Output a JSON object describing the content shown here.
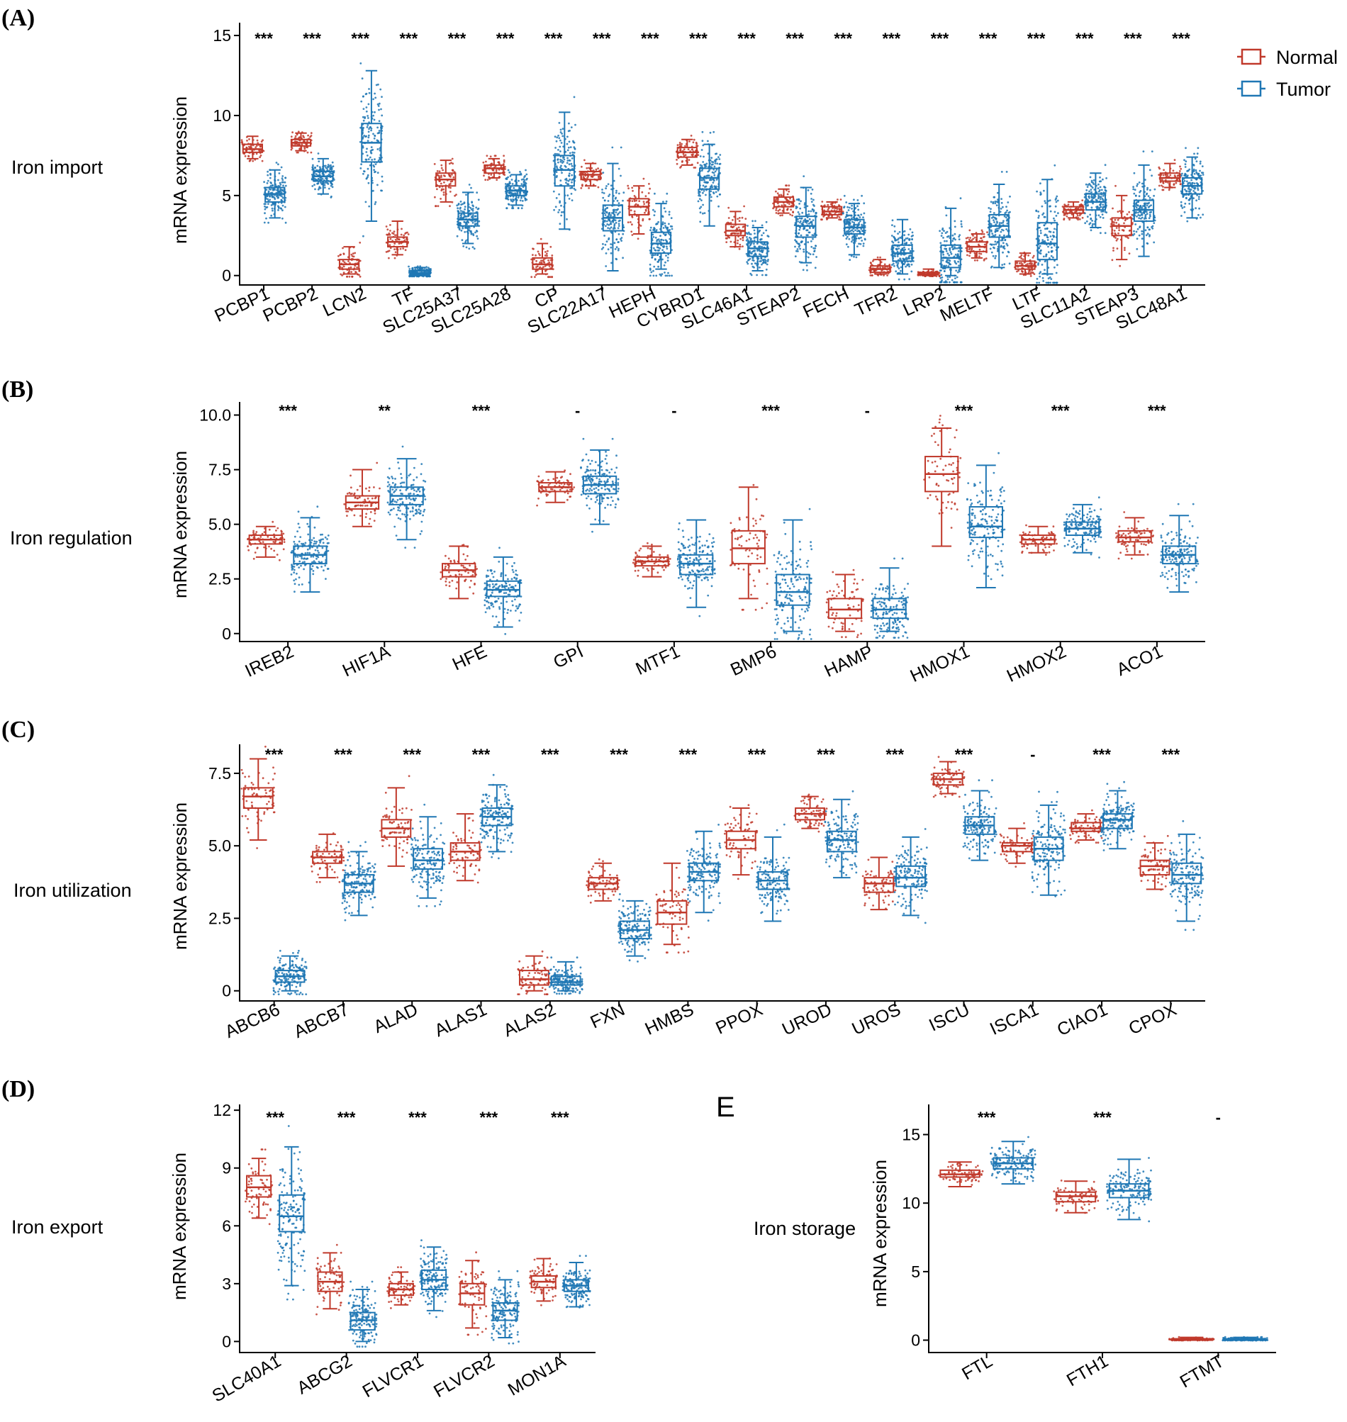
{
  "colors": {
    "normal": "#c0392b",
    "tumor": "#1f77b4",
    "axis": "#000000"
  },
  "legend": {
    "normal_label": "Normal",
    "tumor_label": "Tumor",
    "position": "top-right"
  },
  "panels": [
    {
      "key": "A",
      "letter": "(A)",
      "row_label": "Iron import",
      "ylabel": "mRNA expression"
    },
    {
      "key": "B",
      "letter": "(B)",
      "row_label": "Iron regulation",
      "ylabel": "mRNA expression"
    },
    {
      "key": "C",
      "letter": "(C)",
      "row_label": "Iron utilization",
      "ylabel": "mRNA expression"
    },
    {
      "key": "D",
      "letter": "(D)",
      "row_label": "Iron export",
      "ylabel": "mRNA expression"
    },
    {
      "key": "E",
      "letter": "E",
      "row_label": "Iron storage",
      "ylabel": "mRNA expression"
    }
  ],
  "chart_data": [
    {
      "panel": "A",
      "type": "box",
      "title": "Iron import",
      "xlabel": "",
      "ylabel": "mRNA expression",
      "ylim": [
        -0.5,
        15.8
      ],
      "yticks": [
        0,
        5,
        10,
        15
      ],
      "ytick_labels": [
        "0",
        "5",
        "10",
        "15"
      ],
      "categories": [
        "PCBP1",
        "PCBP2",
        "LCN2",
        "TF",
        "SLC25A37",
        "SLC25A28",
        "CP",
        "SLC22A17",
        "HEPH",
        "CYBRD1",
        "SLC46A1",
        "STEAP2",
        "FECH",
        "TFR2",
        "LRP2",
        "MELTF",
        "LTF",
        "SLC11A2",
        "STEAP3",
        "SLC48A1"
      ],
      "significance": [
        "***",
        "***",
        "***",
        "***",
        "***",
        "***",
        "***",
        "***",
        "***",
        "***",
        "***",
        "***",
        "***",
        "***",
        "***",
        "***",
        "***",
        "***",
        "***",
        "***"
      ],
      "series": [
        {
          "name": "Normal",
          "boxes": [
            [
              7.3,
              7.7,
              7.9,
              8.2,
              8.7
            ],
            [
              7.8,
              8.1,
              8.3,
              8.5,
              8.9
            ],
            [
              0.1,
              0.4,
              0.7,
              1.0,
              1.8
            ],
            [
              1.3,
              1.8,
              2.1,
              2.4,
              3.4
            ],
            [
              4.6,
              5.6,
              6.0,
              6.4,
              7.2
            ],
            [
              6.1,
              6.4,
              6.7,
              6.9,
              7.3
            ],
            [
              0.1,
              0.4,
              0.7,
              1.1,
              2.0
            ],
            [
              5.6,
              6.0,
              6.3,
              6.5,
              7.0
            ],
            [
              2.6,
              3.8,
              4.3,
              4.8,
              5.6
            ],
            [
              6.9,
              7.4,
              7.7,
              8.0,
              8.5
            ],
            [
              1.8,
              2.5,
              2.8,
              3.2,
              4.0
            ],
            [
              3.9,
              4.3,
              4.6,
              4.9,
              5.4
            ],
            [
              3.6,
              3.8,
              4.0,
              4.3,
              4.6
            ],
            [
              0.1,
              0.2,
              0.4,
              0.6,
              1.0
            ],
            [
              0.0,
              0.05,
              0.1,
              0.2,
              0.4
            ],
            [
              1.1,
              1.5,
              1.8,
              2.1,
              2.6
            ],
            [
              0.1,
              0.4,
              0.6,
              0.9,
              1.4
            ],
            [
              3.6,
              3.9,
              4.1,
              4.3,
              4.6
            ],
            [
              1.0,
              2.5,
              3.1,
              3.6,
              5.0
            ],
            [
              5.5,
              5.9,
              6.1,
              6.4,
              7.0
            ]
          ]
        },
        {
          "name": "Tumor",
          "boxes": [
            [
              3.6,
              4.6,
              5.1,
              5.5,
              6.6
            ],
            [
              5.1,
              5.9,
              6.2,
              6.5,
              7.3
            ],
            [
              3.4,
              7.1,
              8.3,
              9.5,
              12.8
            ],
            [
              0.0,
              0.05,
              0.15,
              0.3,
              0.5
            ],
            [
              2.0,
              3.1,
              3.5,
              3.9,
              5.2
            ],
            [
              4.4,
              5.0,
              5.3,
              5.6,
              6.3
            ],
            [
              2.9,
              5.6,
              6.6,
              7.5,
              10.2
            ],
            [
              0.3,
              2.8,
              3.6,
              4.4,
              7.0
            ],
            [
              0.4,
              1.4,
              2.0,
              2.7,
              4.5
            ],
            [
              3.1,
              5.4,
              6.1,
              6.7,
              8.2
            ],
            [
              0.3,
              1.2,
              1.7,
              2.1,
              3.0
            ],
            [
              0.8,
              2.4,
              3.1,
              3.7,
              5.5
            ],
            [
              1.3,
              2.6,
              3.0,
              3.5,
              4.5
            ],
            [
              0.1,
              0.9,
              1.4,
              1.9,
              3.5
            ],
            [
              0.0,
              0.5,
              1.1,
              1.9,
              4.2
            ],
            [
              0.5,
              2.4,
              3.1,
              3.8,
              5.7
            ],
            [
              0.1,
              1.0,
              2.0,
              3.3,
              6.0
            ],
            [
              3.0,
              4.1,
              4.6,
              5.1,
              6.4
            ],
            [
              1.2,
              3.4,
              4.1,
              4.7,
              6.9
            ],
            [
              3.6,
              5.1,
              5.6,
              6.1,
              7.4
            ]
          ]
        }
      ]
    },
    {
      "panel": "B",
      "type": "box",
      "title": "Iron regulation",
      "xlabel": "",
      "ylabel": "mRNA expression",
      "ylim": [
        -0.3,
        10.6
      ],
      "yticks": [
        0,
        2.5,
        5,
        7.5,
        10
      ],
      "ytick_labels": [
        "0",
        "2.5",
        "5.0",
        "7.5",
        "10.0"
      ],
      "categories": [
        "IREB2",
        "HIF1A",
        "HFE",
        "GPI",
        "MTF1",
        "BMP6",
        "HAMP",
        "HMOX1",
        "HMOX2",
        "ACO1"
      ],
      "significance": [
        "***",
        "**",
        "***",
        "-",
        "-",
        "***",
        "-",
        "***",
        "***",
        "***"
      ],
      "series": [
        {
          "name": "Normal",
          "boxes": [
            [
              3.5,
              4.1,
              4.3,
              4.5,
              4.9
            ],
            [
              4.9,
              5.7,
              6.0,
              6.3,
              7.5
            ],
            [
              1.6,
              2.6,
              2.9,
              3.2,
              4.0
            ],
            [
              6.0,
              6.5,
              6.7,
              6.9,
              7.4
            ],
            [
              2.6,
              3.1,
              3.3,
              3.5,
              4.0
            ],
            [
              1.6,
              3.2,
              3.9,
              4.7,
              6.7
            ],
            [
              0.1,
              0.7,
              1.1,
              1.6,
              2.7
            ],
            [
              4.0,
              6.5,
              7.3,
              8.1,
              9.4
            ],
            [
              3.7,
              4.1,
              4.3,
              4.5,
              4.9
            ],
            [
              3.6,
              4.2,
              4.4,
              4.7,
              5.3
            ]
          ]
        },
        {
          "name": "Tumor",
          "boxes": [
            [
              1.9,
              3.2,
              3.6,
              4.0,
              5.3
            ],
            [
              4.3,
              5.9,
              6.3,
              6.7,
              8.0
            ],
            [
              0.3,
              1.7,
              2.0,
              2.4,
              3.5
            ],
            [
              5.0,
              6.4,
              6.8,
              7.2,
              8.4
            ],
            [
              1.2,
              2.7,
              3.2,
              3.6,
              5.2
            ],
            [
              0.1,
              1.3,
              1.9,
              2.7,
              5.2
            ],
            [
              0.1,
              0.7,
              1.1,
              1.6,
              3.0
            ],
            [
              2.1,
              4.4,
              4.9,
              5.8,
              7.7
            ],
            [
              3.7,
              4.5,
              4.8,
              5.1,
              5.9
            ],
            [
              1.9,
              3.2,
              3.6,
              4.0,
              5.4
            ]
          ]
        }
      ]
    },
    {
      "panel": "C",
      "type": "box",
      "title": "Iron utilization",
      "xlabel": "",
      "ylabel": "mRNA expression",
      "ylim": [
        -0.3,
        8.5
      ],
      "yticks": [
        0,
        2.5,
        5,
        7.5
      ],
      "ytick_labels": [
        "0",
        "2.5",
        "5.0",
        "7.5"
      ],
      "categories": [
        "ABCB6",
        "ABCB7",
        "ALAD",
        "ALAS1",
        "ALAS2",
        "FXN",
        "HMBS",
        "PPOX",
        "UROD",
        "UROS",
        "ISCU",
        "ISCA1",
        "CIAO1",
        "CPOX"
      ],
      "significance": [
        "***",
        "***",
        "***",
        "***",
        "***",
        "***",
        "***",
        "***",
        "***",
        "***",
        "***",
        "-",
        "***",
        "***"
      ],
      "series": [
        {
          "name": "Normal",
          "boxes": [
            [
              5.2,
              6.3,
              6.7,
              7.0,
              8.0
            ],
            [
              3.9,
              4.4,
              4.6,
              4.8,
              5.4
            ],
            [
              4.3,
              5.3,
              5.6,
              5.9,
              7.0
            ],
            [
              3.8,
              4.5,
              4.8,
              5.1,
              6.1
            ],
            [
              0.0,
              0.2,
              0.4,
              0.7,
              1.2
            ],
            [
              3.1,
              3.5,
              3.7,
              3.9,
              4.4
            ],
            [
              1.6,
              2.3,
              2.7,
              3.1,
              4.4
            ],
            [
              4.0,
              4.9,
              5.2,
              5.5,
              6.3
            ],
            [
              5.6,
              5.9,
              6.1,
              6.3,
              6.7
            ],
            [
              2.8,
              3.4,
              3.7,
              3.9,
              4.6
            ],
            [
              6.8,
              7.1,
              7.3,
              7.5,
              7.9
            ],
            [
              4.4,
              4.8,
              5.0,
              5.1,
              5.6
            ],
            [
              5.2,
              5.5,
              5.6,
              5.8,
              6.1
            ],
            [
              3.5,
              4.0,
              4.3,
              4.5,
              5.1
            ]
          ]
        },
        {
          "name": "Tumor",
          "boxes": [
            [
              0.0,
              0.3,
              0.5,
              0.7,
              1.2
            ],
            [
              2.6,
              3.4,
              3.7,
              4.0,
              4.8
            ],
            [
              3.2,
              4.2,
              4.5,
              4.9,
              6.0
            ],
            [
              4.8,
              5.7,
              6.0,
              6.3,
              7.1
            ],
            [
              0.0,
              0.2,
              0.3,
              0.5,
              1.0
            ],
            [
              1.2,
              1.8,
              2.1,
              2.4,
              3.1
            ],
            [
              2.7,
              3.8,
              4.1,
              4.4,
              5.5
            ],
            [
              2.4,
              3.5,
              3.8,
              4.1,
              5.3
            ],
            [
              3.9,
              4.8,
              5.2,
              5.5,
              6.6
            ],
            [
              2.6,
              3.6,
              3.9,
              4.3,
              5.3
            ],
            [
              4.5,
              5.4,
              5.7,
              6.0,
              6.9
            ],
            [
              3.3,
              4.5,
              4.9,
              5.3,
              6.4
            ],
            [
              4.9,
              5.6,
              5.9,
              6.1,
              6.9
            ],
            [
              2.4,
              3.7,
              4.0,
              4.4,
              5.4
            ]
          ]
        }
      ]
    },
    {
      "panel": "D",
      "type": "box",
      "title": "Iron export",
      "xlabel": "",
      "ylabel": "mRNA expression",
      "ylim": [
        -0.5,
        12.3
      ],
      "yticks": [
        0,
        3,
        6,
        9,
        12
      ],
      "ytick_labels": [
        "0",
        "3",
        "6",
        "9",
        "12"
      ],
      "categories": [
        "SLC40A1",
        "ABCG2",
        "FLVCR1",
        "FLVCR2",
        "MON1A"
      ],
      "significance": [
        "***",
        "***",
        "***",
        "***",
        "***"
      ],
      "series": [
        {
          "name": "Normal",
          "boxes": [
            [
              6.4,
              7.5,
              8.0,
              8.6,
              9.5
            ],
            [
              1.7,
              2.6,
              3.1,
              3.6,
              4.6
            ],
            [
              1.9,
              2.4,
              2.7,
              3.0,
              3.6
            ],
            [
              0.7,
              1.9,
              2.5,
              3.0,
              4.2
            ],
            [
              2.1,
              2.8,
              3.1,
              3.4,
              4.3
            ]
          ]
        },
        {
          "name": "Tumor",
          "boxes": [
            [
              2.9,
              5.7,
              6.5,
              7.6,
              10.1
            ],
            [
              0.0,
              0.6,
              1.1,
              1.5,
              2.7
            ],
            [
              1.6,
              2.7,
              3.2,
              3.7,
              4.9
            ],
            [
              0.2,
              1.1,
              1.6,
              2.0,
              3.2
            ],
            [
              1.8,
              2.6,
              2.9,
              3.2,
              4.1
            ]
          ]
        }
      ]
    },
    {
      "panel": "E",
      "type": "box",
      "title": "Iron storage",
      "xlabel": "",
      "ylabel": "mRNA expression",
      "ylim": [
        -0.8,
        17.2
      ],
      "yticks": [
        0,
        5,
        10,
        15
      ],
      "ytick_labels": [
        "0",
        "5",
        "10",
        "15"
      ],
      "categories": [
        "FTL",
        "FTH1",
        "FTMT"
      ],
      "significance": [
        "***",
        "***",
        "-"
      ],
      "series": [
        {
          "name": "Normal",
          "boxes": [
            [
              11.2,
              11.9,
              12.1,
              12.4,
              13.0
            ],
            [
              9.3,
              10.1,
              10.5,
              10.8,
              11.6
            ],
            [
              0.0,
              0.0,
              0.05,
              0.1,
              0.2
            ]
          ]
        },
        {
          "name": "Tumor",
          "boxes": [
            [
              11.4,
              12.5,
              12.9,
              13.3,
              14.5
            ],
            [
              8.8,
              10.4,
              10.9,
              11.4,
              13.2
            ],
            [
              0.0,
              0.0,
              0.05,
              0.1,
              0.2
            ]
          ]
        }
      ]
    }
  ]
}
